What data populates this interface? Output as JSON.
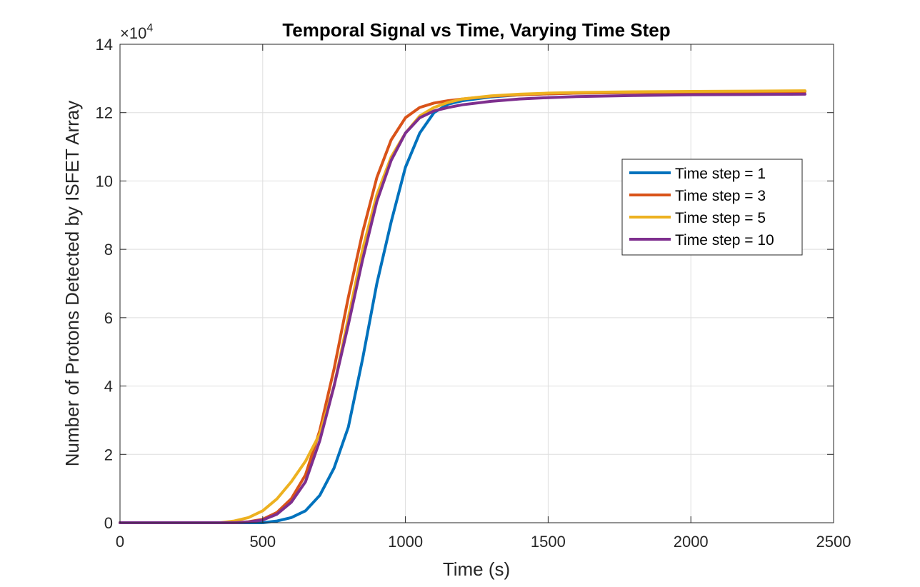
{
  "chart_data": {
    "type": "line",
    "title": "Temporal Signal vs Time, Varying Time Step",
    "xlabel": "Time (s)",
    "ylabel": "Number of Protons Detected by ISFET Array",
    "xlim": [
      0,
      2500
    ],
    "ylim": [
      0,
      140000
    ],
    "xticks": [
      0,
      500,
      1000,
      1500,
      2000,
      2500
    ],
    "xtick_labels": [
      "0",
      "500",
      "1000",
      "1500",
      "2000",
      "2500"
    ],
    "yticks": [
      0,
      20000,
      40000,
      60000,
      80000,
      100000,
      120000,
      140000
    ],
    "ytick_labels": [
      "0",
      "2",
      "4",
      "6",
      "8",
      "10",
      "12",
      "14"
    ],
    "y_multiplier": {
      "base": "×10",
      "exponent": "4"
    },
    "grid": true,
    "legend_position": "right-middle",
    "series": [
      {
        "name": "Time step = 1",
        "color": "#0072BD",
        "x": [
          0,
          400,
          500,
          550,
          600,
          650,
          700,
          750,
          800,
          850,
          900,
          950,
          1000,
          1050,
          1100,
          1150,
          1200,
          1300,
          1400,
          1500,
          1600,
          1800,
          2000,
          2200,
          2400
        ],
        "y": [
          0,
          0,
          0,
          500,
          1500,
          3500,
          8000,
          16000,
          28000,
          48000,
          70000,
          88000,
          104000,
          114000,
          120000,
          122500,
          123500,
          124600,
          125200,
          125500,
          125700,
          125900,
          126000,
          126100,
          126200
        ]
      },
      {
        "name": "Time step = 3",
        "color": "#D95319",
        "x": [
          0,
          400,
          450,
          500,
          550,
          600,
          650,
          700,
          750,
          800,
          850,
          900,
          950,
          1000,
          1050,
          1100,
          1150,
          1200,
          1300,
          1400,
          1500,
          1600,
          1800,
          2000,
          2200,
          2400
        ],
        "y": [
          0,
          0,
          300,
          1000,
          3000,
          7000,
          14000,
          27000,
          45000,
          66000,
          85000,
          101000,
          112000,
          118500,
          121500,
          122800,
          123500,
          124000,
          124800,
          125200,
          125500,
          125700,
          125900,
          126000,
          126100,
          126200
        ]
      },
      {
        "name": "Time step = 5",
        "color": "#EDB120",
        "x": [
          0,
          350,
          400,
          450,
          500,
          550,
          600,
          650,
          700,
          750,
          800,
          850,
          900,
          950,
          1000,
          1050,
          1100,
          1150,
          1200,
          1300,
          1400,
          1500,
          1600,
          1800,
          2000,
          2200,
          2400
        ],
        "y": [
          0,
          0,
          500,
          1500,
          3500,
          7000,
          12000,
          18000,
          26000,
          40000,
          60000,
          80000,
          96000,
          107000,
          114000,
          119000,
          121500,
          123000,
          124000,
          124900,
          125400,
          125700,
          125900,
          126100,
          126200,
          126300,
          126400
        ]
      },
      {
        "name": "Time step = 10",
        "color": "#7E2F8E",
        "x": [
          0,
          400,
          450,
          500,
          550,
          600,
          650,
          700,
          750,
          800,
          850,
          900,
          950,
          1000,
          1050,
          1100,
          1150,
          1200,
          1300,
          1400,
          1500,
          1600,
          1800,
          2000,
          2200,
          2400
        ],
        "y": [
          0,
          0,
          200,
          800,
          2500,
          6000,
          12000,
          24000,
          40000,
          58000,
          77000,
          94000,
          106000,
          114000,
          118500,
          120500,
          121500,
          122300,
          123300,
          124000,
          124400,
          124700,
          125000,
          125200,
          125300,
          125400
        ]
      }
    ]
  }
}
